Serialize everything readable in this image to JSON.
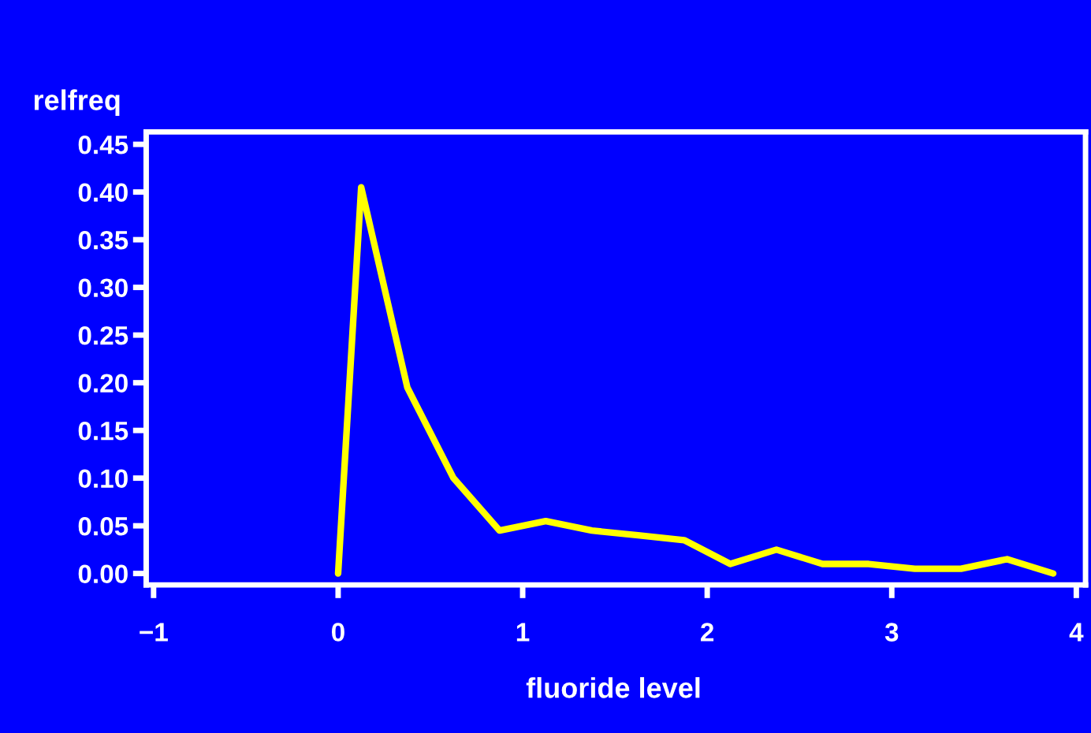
{
  "chart_data": {
    "type": "line",
    "xlabel": "fluoride level",
    "ylabel": "relfreq",
    "series": [
      {
        "color": "#ffff00",
        "x": [
          0,
          0.125,
          0.375,
          0.625,
          0.875,
          1.125,
          1.375,
          1.625,
          1.875,
          2.125,
          2.375,
          2.625,
          2.875,
          3.125,
          3.375,
          3.625,
          3.875
        ],
        "values": [
          0.0,
          0.405,
          0.195,
          0.1,
          0.045,
          0.055,
          0.045,
          0.04,
          0.035,
          0.01,
          0.025,
          0.01,
          0.01,
          0.005,
          0.005,
          0.015,
          0.0
        ]
      }
    ],
    "xlim": [
      -1.04,
      4.05
    ],
    "ylim": [
      -0.012,
      0.463
    ],
    "xticks": [
      {
        "value": -1,
        "label": "−1"
      },
      0,
      1,
      2,
      3,
      4
    ],
    "yticks": [
      {
        "value": 0,
        "label": "0.00"
      },
      {
        "value": 0.05,
        "label": "0.05"
      },
      {
        "value": 0.1,
        "label": "0.10"
      },
      {
        "value": 0.15,
        "label": "0.15"
      },
      {
        "value": 0.2,
        "label": "0.20"
      },
      {
        "value": 0.25,
        "label": "0.25"
      },
      {
        "value": 0.3,
        "label": "0.30"
      },
      {
        "value": 0.35,
        "label": "0.35"
      },
      {
        "value": 0.4,
        "label": "0.40"
      },
      {
        "value": 0.45,
        "label": "0.45"
      }
    ],
    "grid": false,
    "legend": false,
    "marker": "none",
    "line_style": "solid"
  }
}
